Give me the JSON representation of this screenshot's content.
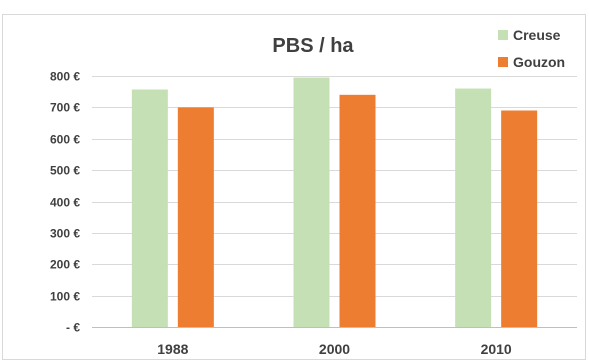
{
  "chart_data": {
    "type": "bar",
    "title": "PBS / ha",
    "xlabel": "",
    "ylabel": "",
    "categories": [
      "1988",
      "2000",
      "2010"
    ],
    "series": [
      {
        "name": "Creuse",
        "color": "#c5e0b4",
        "values": [
          757,
          795,
          760
        ]
      },
      {
        "name": "Gouzon",
        "color": "#ed7d31",
        "values": [
          700,
          740,
          690
        ]
      }
    ],
    "ylim": [
      0,
      800
    ],
    "yticks": [
      0,
      100,
      200,
      300,
      400,
      500,
      600,
      700,
      800
    ],
    "ytick_labels": [
      " -  €",
      "100 €",
      "200 €",
      "300 €",
      "400 €",
      "500 €",
      "600 €",
      "700 €",
      "800 €"
    ],
    "grid": true,
    "legend_position": "top-right"
  }
}
